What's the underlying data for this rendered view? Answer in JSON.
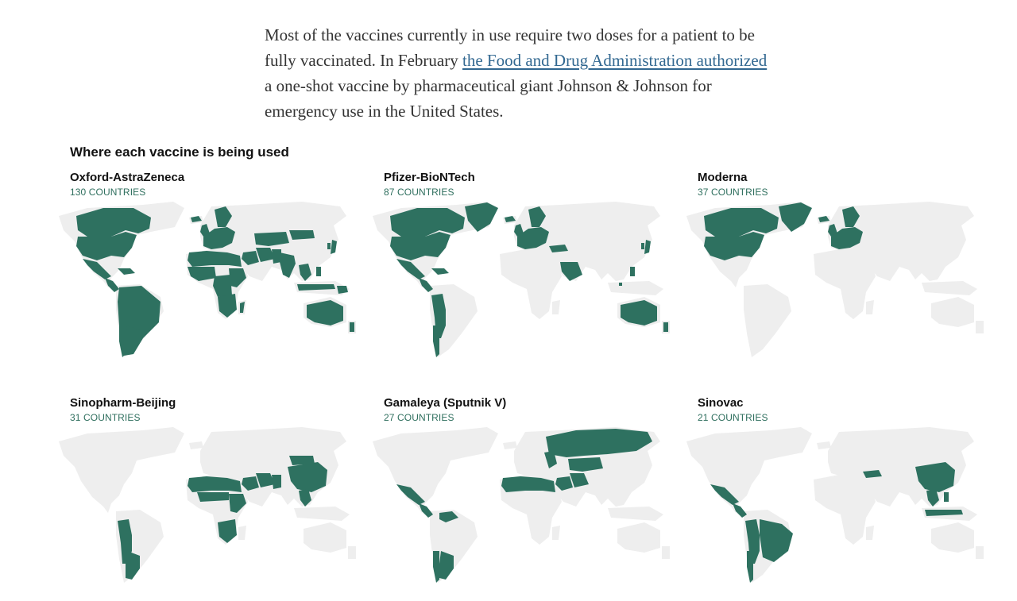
{
  "intro": {
    "text_before": "Most of the vaccines currently in use require two doses for a patient to be fully vaccinated. In February ",
    "link_text": "the Food and Drug Administration authorized",
    "text_after": " a one-shot vaccine by pharmaceutical giant Johnson & Johnson for emergency use in the United States."
  },
  "section_title": "Where each vaccine is being used",
  "colors": {
    "used": "#2e7160",
    "land": "#eeeeee",
    "count_text": "#2f6f5e",
    "link": "#326891"
  },
  "panels": [
    {
      "name": "Oxford-AstraZeneca",
      "count": "130",
      "count_label": "COUNTRIES",
      "regions": [
        "canada",
        "usa",
        "mexico",
        "central-america",
        "caribbean",
        "south-america",
        "argentina",
        "chile",
        "uk",
        "europe",
        "scandinavia",
        "iceland",
        "north-africa",
        "west-africa",
        "central-africa",
        "east-africa",
        "southern-africa",
        "madagascar",
        "middle-east",
        "iran",
        "pakistan",
        "india",
        "central-asia",
        "mongolia",
        "southeast-asia",
        "indonesia",
        "philippines",
        "korea",
        "japan",
        "australia",
        "new-zealand",
        "png"
      ]
    },
    {
      "name": "Pfizer-BioNTech",
      "count": "87",
      "count_label": "COUNTRIES",
      "regions": [
        "canada",
        "usa",
        "mexico",
        "central-america",
        "caribbean",
        "andes",
        "chile",
        "uk",
        "europe",
        "scandinavia",
        "iceland",
        "greenland",
        "turkey",
        "arabia",
        "korea",
        "japan",
        "singapore",
        "philippines",
        "australia",
        "new-zealand"
      ]
    },
    {
      "name": "Moderna",
      "count": "37",
      "count_label": "COUNTRIES",
      "regions": [
        "canada",
        "usa",
        "uk",
        "europe",
        "scandinavia",
        "iceland",
        "greenland"
      ]
    },
    {
      "name": "Sinopharm-Beijing",
      "count": "31",
      "count_label": "COUNTRIES",
      "regions": [
        "andes",
        "argentina",
        "north-africa",
        "sahel",
        "east-africa",
        "southern-africa",
        "middle-east",
        "iran",
        "pakistan",
        "china",
        "southeast-asia",
        "mongolia"
      ]
    },
    {
      "name": "Gamaleya (Sputnik V)",
      "count": "27",
      "count_label": "COUNTRIES",
      "regions": [
        "mexico",
        "central-america",
        "venezuela",
        "argentina",
        "chile",
        "north-africa",
        "russia",
        "central-asia",
        "iran",
        "middle-east",
        "east-europe"
      ]
    },
    {
      "name": "Sinovac",
      "count": "21",
      "count_label": "COUNTRIES",
      "regions": [
        "mexico",
        "central-america",
        "andes",
        "brazil",
        "chile",
        "turkey",
        "china",
        "southeast-asia",
        "indonesia",
        "philippines"
      ]
    }
  ]
}
